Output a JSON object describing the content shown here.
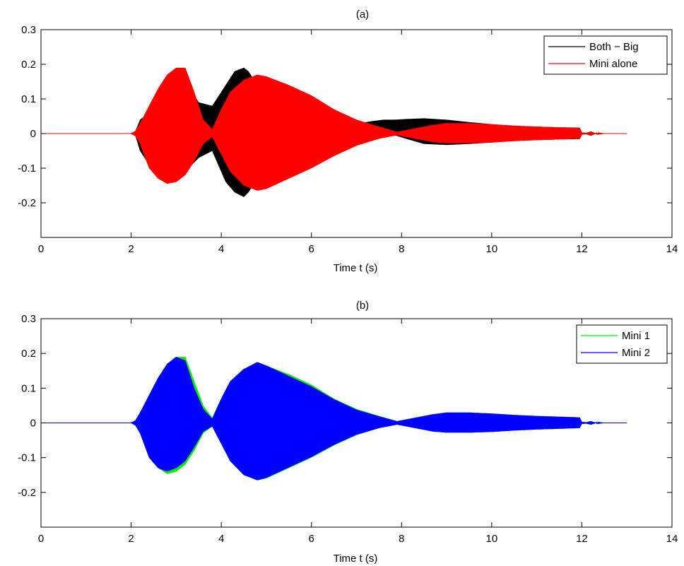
{
  "chart_data": [
    {
      "type": "line",
      "title": "(a)",
      "xlabel": "Time t (s)",
      "ylabel": "",
      "xlim": [
        0,
        14
      ],
      "ylim": [
        -0.3,
        0.3
      ],
      "xticks": [
        "0",
        "2",
        "4",
        "6",
        "8",
        "10",
        "12",
        "14"
      ],
      "yticks": [
        "0.3",
        "0.2",
        "0.1",
        "0",
        "-0.1",
        "-0.2"
      ],
      "grid": false,
      "legend": "top-right",
      "series": [
        {
          "name": "Both − Big",
          "color": "#000000",
          "envelope": {
            "t": [
              0,
              2.0,
              2.1,
              2.2,
              2.4,
              2.6,
              2.8,
              3.0,
              3.2,
              3.5,
              3.8,
              4.1,
              4.3,
              4.5,
              4.6,
              4.75,
              5.0,
              5.5,
              6.0,
              6.5,
              6.9,
              7.3,
              7.6,
              7.85,
              8.1,
              8.5,
              9.0,
              9.5,
              10.0,
              10.5,
              11.0,
              11.5,
              11.95,
              12.0,
              12.1,
              12.2,
              12.3,
              12.5,
              13.0
            ],
            "upper": [
              0,
              0,
              0.008,
              0.04,
              0.06,
              0.09,
              0.12,
              0.17,
              0.15,
              0.09,
              0.08,
              0.14,
              0.18,
              0.19,
              0.18,
              0.15,
              0.12,
              0.09,
              0.06,
              0.035,
              0.025,
              0.035,
              0.04,
              0.04,
              0.042,
              0.044,
              0.04,
              0.033,
              0.027,
              0.022,
              0.02,
              0.018,
              0.017,
              0.003,
              0.002,
              0.006,
              0.001,
              0,
              0
            ],
            "lower": [
              0,
              0,
              -0.008,
              -0.05,
              -0.09,
              -0.12,
              -0.14,
              -0.13,
              -0.11,
              -0.07,
              -0.05,
              -0.14,
              -0.17,
              -0.183,
              -0.17,
              -0.14,
              -0.11,
              -0.08,
              -0.05,
              -0.03,
              -0.02,
              -0.015,
              -0.01,
              -0.005,
              -0.015,
              -0.03,
              -0.033,
              -0.03,
              -0.026,
              -0.021,
              -0.019,
              -0.017,
              -0.016,
              -0.003,
              -0.002,
              -0.006,
              -0.001,
              0,
              0
            ]
          }
        },
        {
          "name": "Mini alone",
          "color": "#ff0000",
          "envelope": {
            "t": [
              0,
              2.0,
              2.1,
              2.2,
              2.4,
              2.6,
              2.8,
              3.0,
              3.2,
              3.4,
              3.6,
              3.8,
              4.0,
              4.2,
              4.5,
              4.8,
              5.0,
              5.5,
              6.0,
              6.5,
              7.0,
              7.5,
              7.9,
              8.3,
              8.7,
              9.0,
              9.5,
              10.0,
              10.5,
              11.0,
              11.5,
              11.95,
              12.0,
              12.1,
              12.2,
              12.3,
              12.5,
              13.0
            ],
            "upper": [
              0,
              0,
              0.008,
              0.03,
              0.08,
              0.13,
              0.17,
              0.19,
              0.19,
              0.12,
              0.04,
              0.012,
              0.07,
              0.12,
              0.155,
              0.17,
              0.165,
              0.14,
              0.11,
              0.07,
              0.04,
              0.02,
              0.005,
              0.015,
              0.025,
              0.03,
              0.03,
              0.027,
              0.023,
              0.02,
              0.018,
              0.016,
              0.003,
              0.002,
              0.005,
              0.001,
              0,
              0
            ],
            "lower": [
              0,
              0,
              -0.008,
              -0.03,
              -0.1,
              -0.13,
              -0.145,
              -0.14,
              -0.12,
              -0.08,
              -0.03,
              -0.01,
              -0.06,
              -0.11,
              -0.15,
              -0.165,
              -0.16,
              -0.13,
              -0.1,
              -0.065,
              -0.035,
              -0.015,
              -0.005,
              -0.015,
              -0.025,
              -0.028,
              -0.028,
              -0.026,
              -0.022,
              -0.019,
              -0.017,
              -0.015,
              -0.003,
              -0.002,
              -0.005,
              -0.001,
              0,
              0
            ]
          }
        }
      ]
    },
    {
      "type": "line",
      "title": "(b)",
      "xlabel": "Time t (s)",
      "ylabel": "",
      "xlim": [
        0,
        14
      ],
      "ylim": [
        -0.3,
        0.3
      ],
      "xticks": [
        "0",
        "2",
        "4",
        "6",
        "8",
        "10",
        "12",
        "14"
      ],
      "yticks": [
        "0.3",
        "0.2",
        "0.1",
        "0",
        "-0.1",
        "-0.2"
      ],
      "grid": false,
      "legend": "top-right",
      "series": [
        {
          "name": "Mini 1",
          "color": "#00ee00",
          "envelope": {
            "t": [
              0,
              2.0,
              2.1,
              2.2,
              2.4,
              2.6,
              2.8,
              3.0,
              3.2,
              3.4,
              3.6,
              3.8,
              4.0,
              4.2,
              4.5,
              4.8,
              5.0,
              5.5,
              6.0,
              6.5,
              7.0,
              7.5,
              7.9,
              8.3,
              8.7,
              9.0,
              9.5,
              10.0,
              10.5,
              11.0,
              11.5,
              11.95,
              12.0,
              12.1,
              12.2,
              12.3,
              12.5,
              13.0
            ],
            "upper": [
              0,
              0,
              0.008,
              0.03,
              0.08,
              0.13,
              0.17,
              0.19,
              0.19,
              0.12,
              0.05,
              0.015,
              0.07,
              0.12,
              0.155,
              0.175,
              0.165,
              0.14,
              0.11,
              0.07,
              0.04,
              0.02,
              0.005,
              0.015,
              0.025,
              0.03,
              0.03,
              0.027,
              0.023,
              0.02,
              0.018,
              0.016,
              0.003,
              0.002,
              0.005,
              0.001,
              0,
              0
            ],
            "lower": [
              0,
              0,
              -0.008,
              -0.03,
              -0.1,
              -0.13,
              -0.147,
              -0.14,
              -0.12,
              -0.08,
              -0.03,
              -0.01,
              -0.06,
              -0.11,
              -0.15,
              -0.165,
              -0.16,
              -0.13,
              -0.1,
              -0.065,
              -0.035,
              -0.015,
              -0.005,
              -0.015,
              -0.025,
              -0.028,
              -0.028,
              -0.026,
              -0.022,
              -0.019,
              -0.017,
              -0.015,
              -0.003,
              -0.002,
              -0.005,
              -0.001,
              0,
              0
            ]
          }
        },
        {
          "name": "Mini 2",
          "color": "#0000ff",
          "envelope": {
            "t": [
              0,
              2.0,
              2.1,
              2.2,
              2.4,
              2.6,
              2.8,
              3.0,
              3.2,
              3.4,
              3.6,
              3.8,
              4.0,
              4.2,
              4.5,
              4.8,
              5.0,
              5.5,
              6.0,
              6.5,
              7.0,
              7.5,
              7.9,
              8.3,
              8.7,
              9.0,
              9.5,
              10.0,
              10.5,
              11.0,
              11.5,
              11.95,
              12.0,
              12.1,
              12.2,
              12.3,
              12.5,
              13.0
            ],
            "upper": [
              0,
              0,
              0.008,
              0.03,
              0.08,
              0.13,
              0.17,
              0.19,
              0.18,
              0.1,
              0.04,
              0.012,
              0.07,
              0.12,
              0.155,
              0.175,
              0.165,
              0.135,
              0.105,
              0.068,
              0.038,
              0.019,
              0.005,
              0.015,
              0.025,
              0.03,
              0.03,
              0.027,
              0.023,
              0.02,
              0.018,
              0.016,
              0.003,
              0.002,
              0.005,
              0.001,
              0,
              0
            ],
            "lower": [
              0,
              0,
              -0.008,
              -0.03,
              -0.1,
              -0.13,
              -0.14,
              -0.13,
              -0.11,
              -0.07,
              -0.025,
              -0.01,
              -0.06,
              -0.11,
              -0.15,
              -0.165,
              -0.158,
              -0.128,
              -0.098,
              -0.063,
              -0.034,
              -0.015,
              -0.005,
              -0.015,
              -0.025,
              -0.028,
              -0.028,
              -0.026,
              -0.022,
              -0.019,
              -0.017,
              -0.015,
              -0.003,
              -0.002,
              -0.005,
              -0.001,
              0,
              0
            ]
          }
        }
      ]
    }
  ]
}
